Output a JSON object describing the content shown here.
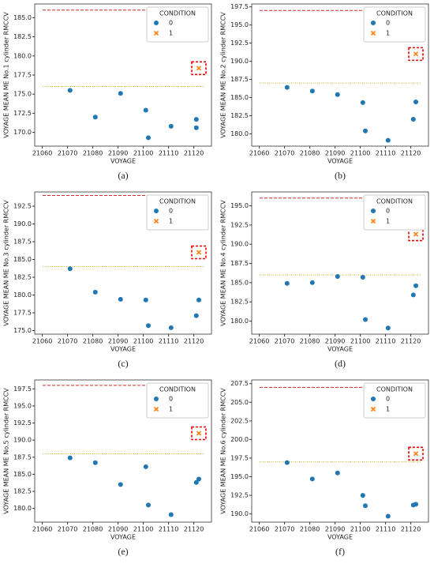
{
  "chart_data": [
    {
      "type": "scatter",
      "caption": "(a)",
      "xlabel": "VOYAGE",
      "ylabel": "VOYAGE MEAN ME No.1 cylinder RMCCV",
      "legend_title": "CONDITION",
      "legend": "upper right",
      "xlim": [
        21057,
        21127
      ],
      "xticks": [
        21060,
        21070,
        21080,
        21090,
        21100,
        21110,
        21120
      ],
      "ylim": [
        168.2,
        186.8
      ],
      "yticks": [
        {
          "value": 170,
          "label": "170.0"
        },
        172.5,
        {
          "value": 175,
          "label": "175.0"
        },
        177.5,
        {
          "value": 180,
          "label": "180.0"
        },
        182.5,
        {
          "value": 185,
          "label": "185.0"
        }
      ],
      "hlines": [
        {
          "value": 186,
          "color": "#d62728",
          "style": "dashed"
        },
        {
          "value": 176,
          "color": "#bcbd22",
          "style": "dotted"
        }
      ],
      "series": [
        {
          "name": "0",
          "color": "#1f77b4",
          "marker": "circle",
          "x": [
            21071,
            21081,
            21091,
            21101,
            21102,
            21111,
            21121,
            21121
          ],
          "values": [
            175.5,
            172.0,
            175.1,
            172.9,
            169.3,
            170.8,
            171.7,
            170.6
          ]
        },
        {
          "name": "1",
          "color": "#ff7f0e",
          "marker": "x",
          "x": [
            21122
          ],
          "values": [
            178.4
          ]
        }
      ]
    },
    {
      "type": "scatter",
      "caption": "(b)",
      "xlabel": "VOYAGE",
      "ylabel": "VOYAGE MEAN ME No.2 cylinder RMCCV",
      "legend_title": "CONDITION",
      "legend": "upper right",
      "xlim": [
        21057,
        21127
      ],
      "xticks": [
        21060,
        21070,
        21080,
        21090,
        21100,
        21110,
        21120
      ],
      "ylim": [
        178.3,
        197.9
      ],
      "yticks": [
        {
          "value": 180,
          "label": "180.0"
        },
        182.5,
        {
          "value": 185,
          "label": "185.0"
        },
        187.5,
        {
          "value": 190,
          "label": "190.0"
        },
        192.5,
        {
          "value": 195,
          "label": "195.0"
        },
        197.5
      ],
      "hlines": [
        {
          "value": 197,
          "color": "#d62728",
          "style": "dashed"
        },
        {
          "value": 187,
          "color": "#bcbd22",
          "style": "dotted"
        }
      ],
      "series": [
        {
          "name": "0",
          "color": "#1f77b4",
          "marker": "circle",
          "x": [
            21071,
            21081,
            21091,
            21101,
            21102,
            21111,
            21121,
            21122
          ],
          "values": [
            186.4,
            185.9,
            185.4,
            184.3,
            180.4,
            179.1,
            182.0,
            184.4
          ]
        },
        {
          "name": "1",
          "color": "#ff7f0e",
          "marker": "x",
          "x": [
            21122
          ],
          "values": [
            191.0
          ]
        }
      ]
    },
    {
      "type": "scatter",
      "caption": "(c)",
      "xlabel": "VOYAGE",
      "ylabel": "VOYAGE MEAN ME No.3 cylinder RMCCV",
      "legend_title": "CONDITION",
      "legend": "upper right",
      "xlim": [
        21057,
        21127
      ],
      "xticks": [
        21060,
        21070,
        21080,
        21090,
        21100,
        21110,
        21120
      ],
      "ylim": [
        174.5,
        194.5
      ],
      "yticks": [
        {
          "value": 175,
          "label": "175.0"
        },
        177.5,
        {
          "value": 180,
          "label": "180.0"
        },
        182.5,
        {
          "value": 185,
          "label": "185.0"
        },
        187.5,
        {
          "value": 190,
          "label": "190.0"
        },
        192.5
      ],
      "hlines": [
        {
          "value": 194,
          "color": "#d62728",
          "style": "dashed"
        },
        {
          "value": 184,
          "color": "#bcbd22",
          "style": "dotted"
        }
      ],
      "series": [
        {
          "name": "0",
          "color": "#1f77b4",
          "marker": "circle",
          "x": [
            21071,
            21081,
            21091,
            21101,
            21102,
            21111,
            21121,
            21122
          ],
          "values": [
            183.7,
            180.4,
            179.4,
            179.3,
            175.7,
            175.4,
            177.1,
            179.3
          ]
        },
        {
          "name": "1",
          "color": "#ff7f0e",
          "marker": "x",
          "x": [
            21122
          ],
          "values": [
            186.0
          ]
        }
      ]
    },
    {
      "type": "scatter",
      "caption": "(d)",
      "xlabel": "VOYAGE",
      "ylabel": "VOYAGE MEAN ME No.4 cylinder RMCCV",
      "legend_title": "CONDITION",
      "legend": "upper right",
      "xlim": [
        21057,
        21127
      ],
      "xticks": [
        21060,
        21070,
        21080,
        21090,
        21100,
        21110,
        21120
      ],
      "ylim": [
        178.3,
        196.8
      ],
      "yticks": [
        {
          "value": 180,
          "label": "180.0"
        },
        182.5,
        {
          "value": 185,
          "label": "185.0"
        },
        187.5,
        {
          "value": 190,
          "label": "190.0"
        },
        192.5,
        {
          "value": 195,
          "label": "195.0"
        }
      ],
      "hlines": [
        {
          "value": 196,
          "color": "#d62728",
          "style": "dashed"
        },
        {
          "value": 186,
          "color": "#bcbd22",
          "style": "dotted"
        }
      ],
      "series": [
        {
          "name": "0",
          "color": "#1f77b4",
          "marker": "circle",
          "x": [
            21071,
            21081,
            21091,
            21101,
            21102,
            21111,
            21121,
            21122
          ],
          "values": [
            184.9,
            185.0,
            185.8,
            185.7,
            180.2,
            179.1,
            183.4,
            184.6
          ]
        },
        {
          "name": "1",
          "color": "#ff7f0e",
          "marker": "x",
          "x": [
            21122
          ],
          "values": [
            191.3
          ]
        }
      ]
    },
    {
      "type": "scatter",
      "caption": "(e)",
      "xlabel": "VOYAGE",
      "ylabel": "VOYAGE MEAN ME No.5 cylinder RMCCV",
      "legend_title": "CONDITION",
      "legend": "upper right",
      "xlim": [
        21057,
        21127
      ],
      "xticks": [
        21060,
        21070,
        21080,
        21090,
        21100,
        21110,
        21120
      ],
      "ylim": [
        178.0,
        198.8
      ],
      "yticks": [
        {
          "value": 180,
          "label": "180.0"
        },
        182.5,
        {
          "value": 185,
          "label": "185.0"
        },
        187.5,
        {
          "value": 190,
          "label": "190.0"
        },
        192.5,
        {
          "value": 195,
          "label": "195.0"
        },
        197.5
      ],
      "hlines": [
        {
          "value": 198,
          "color": "#d62728",
          "style": "dashed"
        },
        {
          "value": 188,
          "color": "#bcbd22",
          "style": "dotted"
        }
      ],
      "series": [
        {
          "name": "0",
          "color": "#1f77b4",
          "marker": "circle",
          "x": [
            21071,
            21081,
            21091,
            21101,
            21102,
            21111,
            21121,
            21122
          ],
          "values": [
            187.4,
            186.7,
            183.5,
            186.1,
            180.5,
            179.1,
            183.8,
            184.3
          ]
        },
        {
          "name": "1",
          "color": "#ff7f0e",
          "marker": "x",
          "x": [
            21122
          ],
          "values": [
            191.0
          ]
        }
      ]
    },
    {
      "type": "scatter",
      "caption": "(f)",
      "xlabel": "VOYAGE",
      "ylabel": "VOYAGE MEAN ME No.6 cylinder RMCCV",
      "legend_title": "CONDITION",
      "legend": "upper right",
      "xlim": [
        21057,
        21127
      ],
      "xticks": [
        21060,
        21070,
        21080,
        21090,
        21100,
        21110,
        21120
      ],
      "ylim": [
        188.9,
        208.0
      ],
      "yticks": [
        {
          "value": 190,
          "label": "190.0"
        },
        192.5,
        {
          "value": 195,
          "label": "195.0"
        },
        197.5,
        {
          "value": 200,
          "label": "200.0"
        },
        202.5,
        {
          "value": 205,
          "label": "205.0"
        },
        207.5
      ],
      "hlines": [
        {
          "value": 207,
          "color": "#d62728",
          "style": "dashed"
        },
        {
          "value": 197,
          "color": "#bcbd22",
          "style": "dotted"
        }
      ],
      "series": [
        {
          "name": "0",
          "color": "#1f77b4",
          "marker": "circle",
          "x": [
            21071,
            21081,
            21091,
            21101,
            21102,
            21111,
            21121,
            21122
          ],
          "values": [
            196.9,
            194.7,
            195.5,
            192.5,
            191.1,
            189.7,
            191.2,
            191.3
          ]
        },
        {
          "name": "1",
          "color": "#ff7f0e",
          "marker": "x",
          "x": [
            21122
          ],
          "values": [
            198.1
          ]
        }
      ]
    }
  ]
}
